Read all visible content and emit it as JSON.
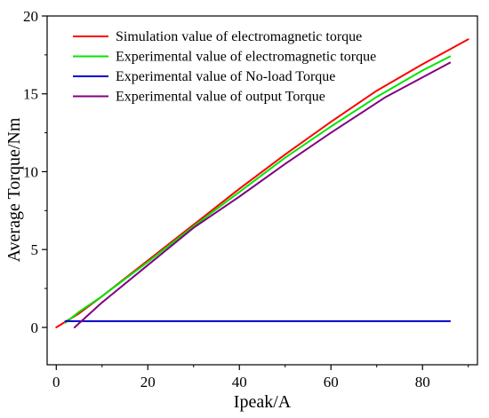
{
  "chart_data": {
    "type": "line",
    "title": "",
    "xlabel": "Ipeak/A",
    "ylabel": "Average Torque/Nm",
    "xlim": [
      -2,
      92
    ],
    "ylim": [
      -2.4,
      20
    ],
    "xticks": [
      0,
      20,
      40,
      60,
      80
    ],
    "yticks": [
      0,
      5,
      10,
      15,
      20
    ],
    "grid": false,
    "legend_position": "top-left",
    "series": [
      {
        "name": "Simulation value of electromagnetic torque",
        "color": "#ff0000",
        "x": [
          0,
          5,
          10,
          20,
          30,
          40,
          50,
          60,
          70,
          80,
          90
        ],
        "y": [
          0,
          0.9,
          2.0,
          4.3,
          6.6,
          8.9,
          11.1,
          13.2,
          15.2,
          16.9,
          18.5
        ]
      },
      {
        "name": "Experimental value of electromagnetic torque",
        "color": "#00e600",
        "x": [
          2,
          5,
          10,
          20,
          30,
          40,
          50,
          60,
          70,
          80,
          86
        ],
        "y": [
          0.3,
          1.0,
          2.0,
          4.2,
          6.5,
          8.7,
          10.9,
          12.9,
          14.8,
          16.5,
          17.4
        ]
      },
      {
        "name": "Experimental value of No-load Torque",
        "color": "#0000cc",
        "x": [
          2,
          86
        ],
        "y": [
          0.4,
          0.4
        ]
      },
      {
        "name": "Experimental value of output Torque",
        "color": "#800080",
        "x": [
          4,
          10,
          20,
          30,
          35,
          40,
          50,
          60,
          72,
          86
        ],
        "y": [
          0,
          1.6,
          4.0,
          6.4,
          7.4,
          8.4,
          10.5,
          12.5,
          14.8,
          17.0
        ]
      }
    ]
  }
}
